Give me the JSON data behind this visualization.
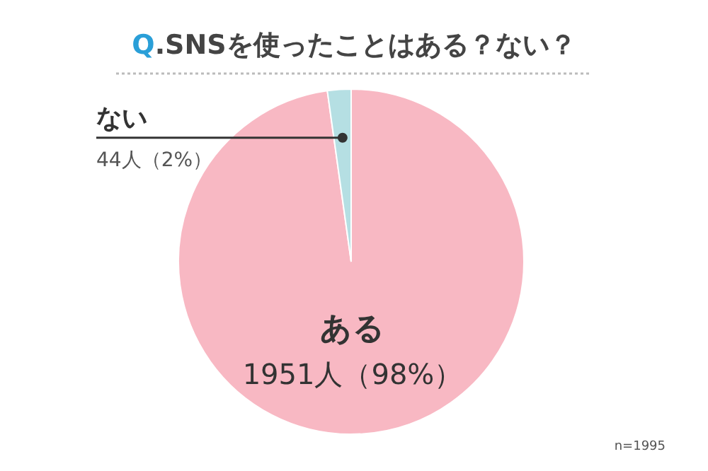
{
  "chart_data": {
    "type": "pie",
    "title": "Q.SNSを使ったことはある？ない？",
    "categories": [
      "ある",
      "ない"
    ],
    "values": [
      1951,
      44
    ],
    "colors": [
      "#f8b8c3",
      "#b5dfe3"
    ],
    "value_labels": [
      "1951人（98%）",
      "44人（2%）"
    ],
    "annotations": [
      "n=1995"
    ]
  }
}
